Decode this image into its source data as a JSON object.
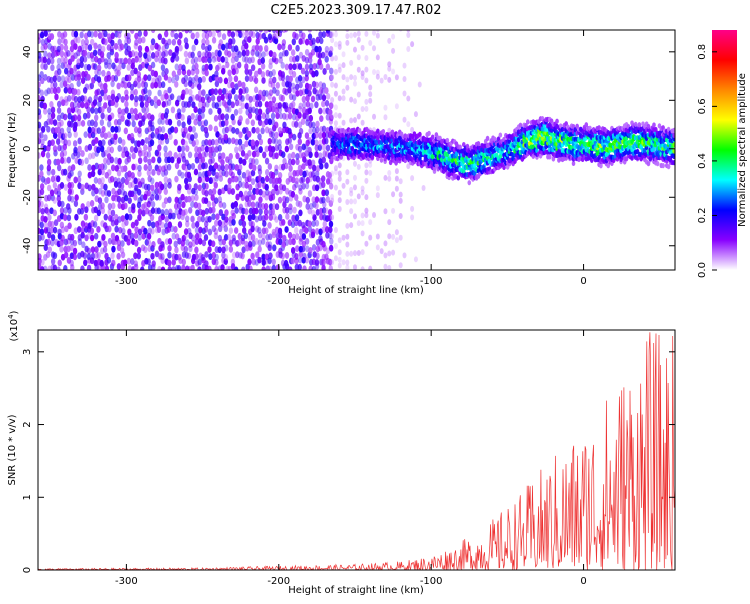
{
  "title": "C2E5.2023.309.17.47.R02",
  "chart_data": [
    {
      "type": "heatmap",
      "xlabel": "Height of straight line (km)",
      "ylabel": "Frequency (Hz)",
      "xlim": [
        -358,
        60
      ],
      "ylim": [
        -50,
        49
      ],
      "x_ticks": [
        -300,
        -200,
        -100,
        0
      ],
      "y_ticks": [
        -40,
        -20,
        0,
        20,
        40
      ],
      "x_tick_labels": [
        "-300",
        "-200",
        "-100",
        "0"
      ],
      "y_tick_labels": [
        "-40",
        "-20",
        "0",
        "20",
        "40"
      ],
      "colorbar": {
        "label": "Normalized spectral amplitude",
        "range": [
          0,
          0.88
        ],
        "ticks": [
          0.0,
          0.2,
          0.4,
          0.6,
          0.8
        ],
        "tick_labels": [
          "0.0",
          "0.2",
          "0.4",
          "0.6",
          "0.8"
        ],
        "colormap": [
          "#ffffff",
          "#8800ff",
          "#0000ff",
          "#00ffff",
          "#00ff00",
          "#ffff00",
          "#ff8800",
          "#ff0000",
          "#ff0088"
        ]
      },
      "signal_track": {
        "x": [
          -165,
          -150,
          -130,
          -110,
          -95,
          -85,
          -75,
          -65,
          -55,
          -45,
          -35,
          -25,
          -15,
          -5,
          5,
          15,
          25,
          35,
          45,
          55
        ],
        "freq": [
          2,
          2,
          1,
          0,
          -2,
          -5,
          -6,
          -4,
          -2,
          1,
          4,
          5,
          3,
          2,
          2,
          1,
          2,
          3,
          2,
          1
        ],
        "peak_amplitude": [
          0.25,
          0.3,
          0.3,
          0.3,
          0.4,
          0.45,
          0.45,
          0.4,
          0.35,
          0.4,
          0.5,
          0.55,
          0.5,
          0.45,
          0.45,
          0.5,
          0.45,
          0.45,
          0.45,
          0.45
        ]
      },
      "grid": false
    },
    {
      "type": "line",
      "xlabel": "Height of straight line (km)",
      "ylabel": "SNR (10 * v/v)",
      "y_multiplier_label": "(x10",
      "y_multiplier_exp": "4",
      "y_multiplier_close": ")",
      "xlim": [
        -358,
        60
      ],
      "ylim": [
        0,
        3.3
      ],
      "x_ticks": [
        -300,
        -200,
        -100,
        0
      ],
      "y_ticks": [
        0,
        1,
        2,
        3
      ],
      "x_tick_labels": [
        "-300",
        "-200",
        "-100",
        "0"
      ],
      "y_tick_labels": [
        "0",
        "1",
        "2",
        "3"
      ],
      "series_color": "#ee3333",
      "envelope": {
        "x": [
          -358,
          -250,
          -150,
          -120,
          -100,
          -80,
          -60,
          -40,
          -20,
          0,
          20,
          40,
          60
        ],
        "y_max": [
          0.02,
          0.03,
          0.08,
          0.12,
          0.2,
          0.4,
          0.7,
          1.1,
          1.6,
          2.0,
          2.6,
          3.3,
          3.3
        ]
      },
      "grid": false
    }
  ]
}
